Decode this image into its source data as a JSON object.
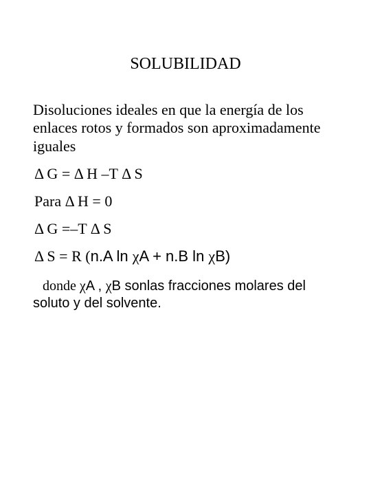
{
  "title": "SOLUBILIDAD",
  "paragraph": "Disoluciones ideales en que la energía de los enlaces rotos y formados son aproximadamente iguales",
  "eq1": " Δ G =  Δ H –T  Δ S",
  "eq2": "Para  Δ H = 0",
  "eq3": " Δ G =–T  Δ S",
  "eq4_pre": " Δ S = R (",
  "eq4_nA": "n.A ln ",
  "eq4_chiA": "χ",
  "eq4_A": "A",
  "eq4_plus": " + ",
  "eq4_nB": "n.B ln ",
  "eq4_chiB": "χ",
  "eq4_B": "B",
  "eq4_close": ")",
  "explain_pre": "donde ",
  "explain_chiA": "χ",
  "explain_A": "A",
  "explain_sep": " ,  ",
  "explain_chiB": "χ",
  "explain_B": "B",
  "explain_tail1": " sonlas fracciones molares del",
  "explain_tail2": "soluto y del solvente."
}
